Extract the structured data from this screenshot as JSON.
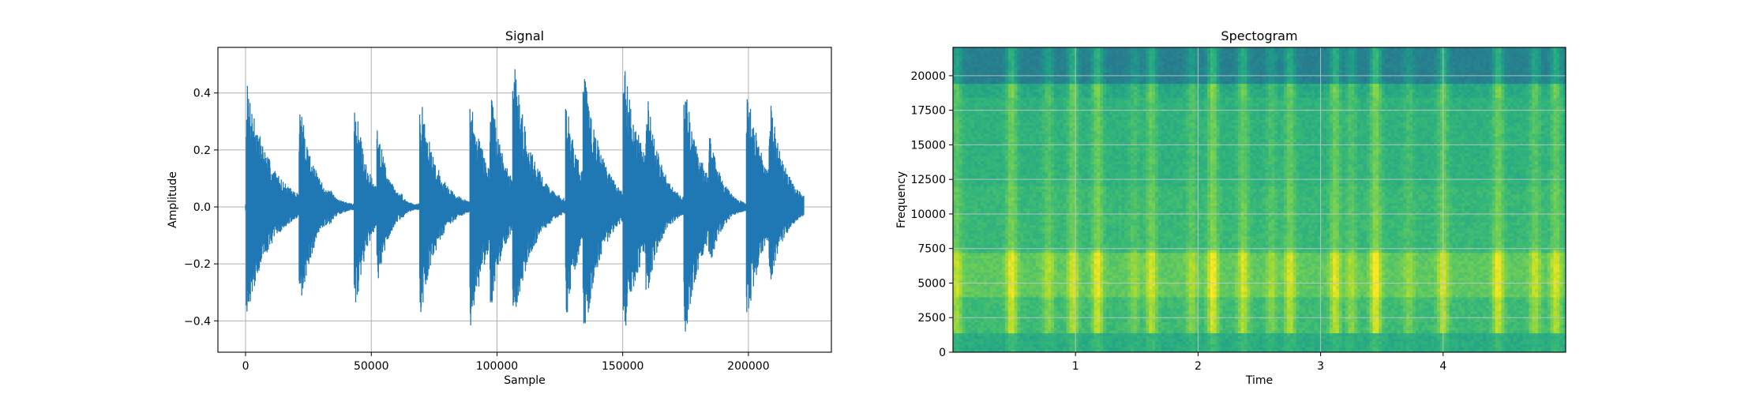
{
  "chart_data": [
    {
      "type": "line",
      "title": "Signal",
      "xlabel": "Sample",
      "ylabel": "Amplitude",
      "xlim": [
        -11000,
        233000
      ],
      "ylim": [
        -0.51,
        0.56
      ],
      "xticks": [
        0,
        50000,
        100000,
        150000,
        200000
      ],
      "yticks": [
        -0.4,
        -0.2,
        0.0,
        0.2,
        0.4
      ],
      "xtick_labels": [
        "0",
        "50000",
        "100000",
        "150000",
        "200000"
      ],
      "ytick_labels": [
        "−0.4",
        "−0.2",
        "0.0",
        "0.2",
        "0.4"
      ],
      "grid": true,
      "color": "#1f77b4",
      "series": [
        {
          "bursts": [
            {
              "x": 1000,
              "peak": 0.43,
              "trough": -0.37,
              "decay": 9000
            },
            {
              "x": 11000,
              "peak": 0.08,
              "trough": -0.08,
              "decay": 3500
            },
            {
              "x": 22000,
              "peak": 0.35,
              "trough": -0.35,
              "decay": 6000
            },
            {
              "x": 34000,
              "peak": 0.06,
              "trough": -0.06,
              "decay": 3000
            },
            {
              "x": 44000,
              "peak": 0.35,
              "trough": -0.36,
              "decay": 5000
            },
            {
              "x": 53000,
              "peak": 0.27,
              "trough": -0.27,
              "decay": 4500
            },
            {
              "x": 62000,
              "peak": 0.05,
              "trough": -0.05,
              "decay": 2500
            },
            {
              "x": 70000,
              "peak": 0.37,
              "trough": -0.37,
              "decay": 6500
            },
            {
              "x": 80000,
              "peak": 0.05,
              "trough": -0.05,
              "decay": 2500
            },
            {
              "x": 90000,
              "peak": 0.37,
              "trough": -0.42,
              "decay": 7000
            },
            {
              "x": 98000,
              "peak": 0.38,
              "trough": -0.35,
              "decay": 6000
            },
            {
              "x": 107000,
              "peak": 0.52,
              "trough": -0.44,
              "decay": 7000
            },
            {
              "x": 117000,
              "peak": 0.13,
              "trough": -0.1,
              "decay": 4000
            },
            {
              "x": 128000,
              "peak": 0.35,
              "trough": -0.38,
              "decay": 6000
            },
            {
              "x": 135000,
              "peak": 0.48,
              "trough": -0.45,
              "decay": 7000
            },
            {
              "x": 145000,
              "peak": 0.1,
              "trough": -0.1,
              "decay": 3500
            },
            {
              "x": 151000,
              "peak": 0.49,
              "trough": -0.44,
              "decay": 8000
            },
            {
              "x": 160000,
              "peak": 0.38,
              "trough": -0.3,
              "decay": 6000
            },
            {
              "x": 175000,
              "peak": 0.41,
              "trough": -0.46,
              "decay": 7000
            },
            {
              "x": 185000,
              "peak": 0.25,
              "trough": -0.2,
              "decay": 5000
            },
            {
              "x": 200000,
              "peak": 0.41,
              "trough": -0.38,
              "decay": 7000
            },
            {
              "x": 209000,
              "peak": 0.36,
              "trough": -0.27,
              "decay": 6000
            },
            {
              "x": 216000,
              "peak": 0.02,
              "trough": -0.02,
              "decay": 3000
            }
          ],
          "noise_floor": 0.012,
          "x_end": 222000
        }
      ]
    },
    {
      "type": "heatmap",
      "title": "Spectogram",
      "xlabel": "Time",
      "ylabel": "Frequency",
      "xlim": [
        0.0,
        5.0
      ],
      "ylim": [
        0,
        22050
      ],
      "xticks": [
        1,
        2,
        3,
        4
      ],
      "yticks": [
        0,
        2500,
        5000,
        7500,
        10000,
        12500,
        15000,
        17500,
        20000
      ],
      "xtick_labels": [
        "1",
        "2",
        "3",
        "4"
      ],
      "ytick_labels": [
        "0",
        "2500",
        "5000",
        "7500",
        "10000",
        "12500",
        "15000",
        "17500",
        "20000"
      ],
      "grid": true,
      "colormap": [
        "#30688e",
        "#26828e",
        "#1f9e89",
        "#35b779",
        "#6ece58",
        "#b5de2b",
        "#fde725"
      ],
      "frequency_bands": [
        {
          "from": 0,
          "to": 1500,
          "level": 0.42
        },
        {
          "from": 1500,
          "to": 4000,
          "level": 0.52
        },
        {
          "from": 4000,
          "to": 7200,
          "level": 0.62
        },
        {
          "from": 7200,
          "to": 12000,
          "level": 0.5
        },
        {
          "from": 12000,
          "to": 18500,
          "level": 0.46
        },
        {
          "from": 18500,
          "to": 19500,
          "level": 0.4
        },
        {
          "from": 19500,
          "to": 22050,
          "level": 0.15
        }
      ],
      "events_time": [
        0.03,
        0.48,
        0.78,
        0.98,
        1.18,
        1.48,
        1.62,
        1.95,
        2.12,
        2.37,
        2.6,
        2.75,
        3.12,
        3.25,
        3.45,
        3.72,
        4.0,
        4.45,
        4.75,
        4.92
      ],
      "events_strength": [
        0.25,
        0.35,
        0.2,
        0.3,
        0.35,
        0.15,
        0.3,
        0.2,
        0.38,
        0.3,
        0.18,
        0.3,
        0.32,
        0.2,
        0.4,
        0.15,
        0.3,
        0.35,
        0.25,
        0.3
      ]
    }
  ]
}
